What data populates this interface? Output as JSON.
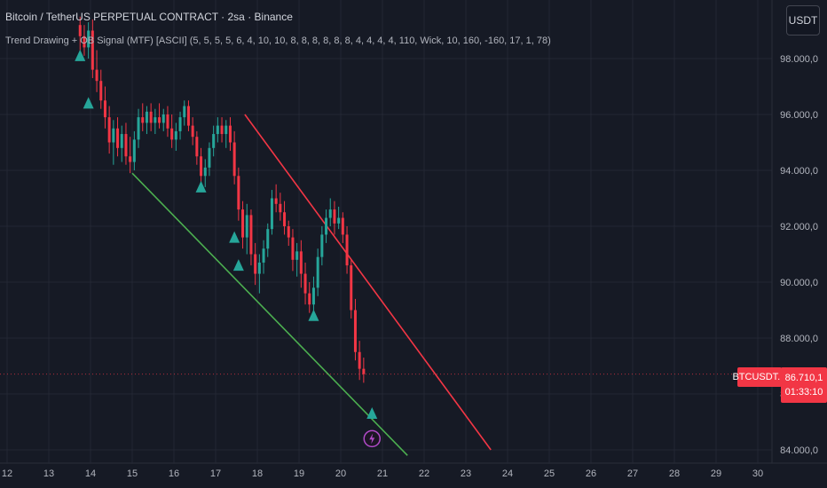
{
  "header": {
    "title": "Bitcoin / TetherUS PERPETUAL CONTRACT · 2sa · Binance",
    "indicator": "Trend Drawing + OB Signal (MTF) [ASCII] (5, 5, 5, 5, 6, 4, 10, 10, 8, 8, 8, 8, 8, 8, 4, 4, 4, 4, 110, Wick, 10, 160, -160, 17, 1, 78)"
  },
  "currency_button": "USDT",
  "last_price": {
    "symbol": "BTCUSDT.P",
    "value": "86.710,1",
    "countdown": "01:33:10"
  },
  "colors": {
    "background": "#161a25",
    "grid": "#232734",
    "up": "#26a69a",
    "down": "#f23645",
    "trend_down": "#f23645",
    "trend_up": "#4caf50",
    "signal": "#26a69a",
    "lightning": "#b04ac7"
  },
  "chart_data": {
    "type": "candlestick",
    "x_ticks": [
      {
        "label": "12",
        "day": 12
      },
      {
        "label": "13",
        "day": 13
      },
      {
        "label": "14",
        "day": 14
      },
      {
        "label": "15",
        "day": 15
      },
      {
        "label": "16",
        "day": 16
      },
      {
        "label": "17",
        "day": 17
      },
      {
        "label": "18",
        "day": 18
      },
      {
        "label": "19",
        "day": 19
      },
      {
        "label": "20",
        "day": 20
      },
      {
        "label": "21",
        "day": 21
      },
      {
        "label": "22",
        "day": 22
      },
      {
        "label": "23",
        "day": 23
      },
      {
        "label": "24",
        "day": 24
      },
      {
        "label": "25",
        "day": 25
      },
      {
        "label": "26",
        "day": 26
      },
      {
        "label": "27",
        "day": 27
      },
      {
        "label": "28",
        "day": 28
      },
      {
        "label": "29",
        "day": 29
      },
      {
        "label": "30",
        "day": 30
      }
    ],
    "y_ticks": [
      {
        "label": "84.000,0",
        "value": 84000
      },
      {
        "label": "86.000,0",
        "value": 86000
      },
      {
        "label": "88.000,0",
        "value": 88000
      },
      {
        "label": "90.000,0",
        "value": 90000
      },
      {
        "label": "92.000,0",
        "value": 92000
      },
      {
        "label": "94.000,0",
        "value": 94000
      },
      {
        "label": "96.000,0",
        "value": 96000
      },
      {
        "label": "98.000,0",
        "value": 98000
      }
    ],
    "candles": [
      {
        "day": 13.75,
        "open": 99200,
        "high": 99500,
        "low": 98300,
        "close": 98800
      },
      {
        "day": 13.85,
        "open": 98800,
        "high": 99200,
        "low": 98100,
        "close": 98400
      },
      {
        "day": 13.95,
        "open": 98400,
        "high": 99300,
        "low": 98000,
        "close": 99000
      },
      {
        "day": 14.05,
        "open": 99000,
        "high": 99400,
        "low": 97300,
        "close": 97600
      },
      {
        "day": 14.15,
        "open": 97600,
        "high": 98300,
        "low": 96800,
        "close": 97200
      },
      {
        "day": 14.25,
        "open": 97200,
        "high": 97600,
        "low": 96200,
        "close": 96500
      },
      {
        "day": 14.35,
        "open": 96500,
        "high": 97000,
        "low": 95500,
        "close": 95900
      },
      {
        "day": 14.45,
        "open": 95900,
        "high": 96300,
        "low": 94600,
        "close": 95000
      },
      {
        "day": 14.55,
        "open": 95000,
        "high": 95800,
        "low": 94200,
        "close": 95500
      },
      {
        "day": 14.65,
        "open": 95500,
        "high": 95900,
        "low": 94500,
        "close": 94800
      },
      {
        "day": 14.75,
        "open": 94800,
        "high": 95600,
        "low": 94300,
        "close": 95300
      },
      {
        "day": 14.85,
        "open": 95300,
        "high": 95700,
        "low": 94200,
        "close": 94500
      },
      {
        "day": 14.95,
        "open": 94500,
        "high": 95200,
        "low": 93900,
        "close": 94300
      },
      {
        "day": 15.05,
        "open": 94300,
        "high": 95400,
        "low": 94000,
        "close": 95100
      },
      {
        "day": 15.15,
        "open": 95100,
        "high": 96200,
        "low": 94800,
        "close": 95900
      },
      {
        "day": 15.25,
        "open": 95900,
        "high": 96400,
        "low": 95400,
        "close": 95700
      },
      {
        "day": 15.35,
        "open": 95700,
        "high": 96300,
        "low": 95300,
        "close": 96100
      },
      {
        "day": 15.45,
        "open": 96100,
        "high": 96400,
        "low": 95400,
        "close": 95700
      },
      {
        "day": 15.55,
        "open": 95700,
        "high": 96200,
        "low": 95300,
        "close": 95900
      },
      {
        "day": 15.65,
        "open": 95900,
        "high": 96400,
        "low": 95500,
        "close": 95700
      },
      {
        "day": 15.75,
        "open": 95700,
        "high": 96200,
        "low": 95400,
        "close": 96000
      },
      {
        "day": 15.85,
        "open": 96000,
        "high": 96300,
        "low": 95200,
        "close": 95500
      },
      {
        "day": 15.95,
        "open": 95500,
        "high": 96000,
        "low": 94800,
        "close": 95100
      },
      {
        "day": 16.05,
        "open": 95100,
        "high": 95700,
        "low": 94700,
        "close": 95400
      },
      {
        "day": 16.15,
        "open": 95400,
        "high": 96100,
        "low": 95100,
        "close": 95900
      },
      {
        "day": 16.25,
        "open": 95900,
        "high": 96500,
        "low": 95600,
        "close": 96300
      },
      {
        "day": 16.35,
        "open": 96300,
        "high": 96500,
        "low": 95400,
        "close": 95600
      },
      {
        "day": 16.45,
        "open": 95600,
        "high": 95900,
        "low": 94900,
        "close": 95200
      },
      {
        "day": 16.55,
        "open": 95200,
        "high": 95400,
        "low": 94200,
        "close": 94500
      },
      {
        "day": 16.65,
        "open": 94500,
        "high": 94800,
        "low": 93500,
        "close": 93800
      },
      {
        "day": 16.75,
        "open": 93800,
        "high": 94400,
        "low": 93400,
        "close": 94100
      },
      {
        "day": 16.85,
        "open": 94100,
        "high": 95000,
        "low": 93800,
        "close": 94800
      },
      {
        "day": 16.95,
        "open": 94800,
        "high": 95600,
        "low": 94500,
        "close": 95300
      },
      {
        "day": 17.05,
        "open": 95300,
        "high": 95900,
        "low": 95000,
        "close": 95600
      },
      {
        "day": 17.15,
        "open": 95600,
        "high": 95900,
        "low": 95000,
        "close": 95300
      },
      {
        "day": 17.25,
        "open": 95300,
        "high": 95800,
        "low": 94800,
        "close": 95600
      },
      {
        "day": 17.35,
        "open": 95600,
        "high": 95900,
        "low": 94700,
        "close": 95000
      },
      {
        "day": 17.45,
        "open": 95000,
        "high": 95400,
        "low": 93500,
        "close": 93800
      },
      {
        "day": 17.55,
        "open": 93800,
        "high": 94100,
        "low": 92200,
        "close": 92600
      },
      {
        "day": 17.65,
        "open": 92600,
        "high": 92900,
        "low": 91200,
        "close": 91600
      },
      {
        "day": 17.75,
        "open": 91600,
        "high": 92800,
        "low": 91000,
        "close": 92400
      },
      {
        "day": 17.85,
        "open": 92400,
        "high": 92600,
        "low": 90600,
        "close": 91000
      },
      {
        "day": 17.95,
        "open": 91000,
        "high": 91400,
        "low": 89900,
        "close": 90300
      },
      {
        "day": 18.05,
        "open": 90300,
        "high": 91000,
        "low": 89600,
        "close": 90700
      },
      {
        "day": 18.15,
        "open": 90700,
        "high": 91500,
        "low": 90300,
        "close": 91200
      },
      {
        "day": 18.25,
        "open": 91200,
        "high": 92100,
        "low": 90900,
        "close": 91900
      },
      {
        "day": 18.35,
        "open": 91900,
        "high": 93300,
        "low": 91700,
        "close": 93000
      },
      {
        "day": 18.45,
        "open": 93000,
        "high": 93500,
        "low": 92500,
        "close": 92800
      },
      {
        "day": 18.55,
        "open": 92800,
        "high": 93200,
        "low": 92200,
        "close": 92500
      },
      {
        "day": 18.65,
        "open": 92500,
        "high": 92900,
        "low": 91700,
        "close": 92000
      },
      {
        "day": 18.75,
        "open": 92000,
        "high": 92200,
        "low": 91300,
        "close": 91600
      },
      {
        "day": 18.85,
        "open": 91600,
        "high": 91900,
        "low": 90400,
        "close": 90800
      },
      {
        "day": 18.95,
        "open": 90800,
        "high": 91400,
        "low": 90200,
        "close": 91100
      },
      {
        "day": 19.05,
        "open": 91100,
        "high": 91500,
        "low": 89800,
        "close": 90300
      },
      {
        "day": 19.15,
        "open": 90300,
        "high": 90700,
        "low": 89200,
        "close": 89600
      },
      {
        "day": 19.25,
        "open": 89600,
        "high": 90000,
        "low": 88900,
        "close": 89200
      },
      {
        "day": 19.35,
        "open": 89200,
        "high": 90200,
        "low": 88800,
        "close": 89800
      },
      {
        "day": 19.45,
        "open": 89800,
        "high": 91200,
        "low": 89500,
        "close": 90900
      },
      {
        "day": 19.55,
        "open": 90900,
        "high": 92000,
        "low": 90600,
        "close": 91700
      },
      {
        "day": 19.65,
        "open": 91700,
        "high": 92600,
        "low": 91400,
        "close": 92300
      },
      {
        "day": 19.75,
        "open": 92300,
        "high": 93000,
        "low": 92000,
        "close": 92600
      },
      {
        "day": 19.85,
        "open": 92600,
        "high": 92900,
        "low": 91700,
        "close": 92100
      },
      {
        "day": 19.95,
        "open": 92100,
        "high": 92700,
        "low": 91900,
        "close": 92300
      },
      {
        "day": 20.05,
        "open": 92300,
        "high": 92500,
        "low": 91400,
        "close": 91700
      },
      {
        "day": 20.15,
        "open": 91700,
        "high": 92000,
        "low": 90300,
        "close": 90600
      },
      {
        "day": 20.25,
        "open": 90600,
        "high": 90800,
        "low": 88700,
        "close": 89000
      },
      {
        "day": 20.35,
        "open": 89000,
        "high": 89400,
        "low": 87200,
        "close": 87500
      },
      {
        "day": 20.45,
        "open": 87500,
        "high": 87900,
        "low": 86500,
        "close": 86900
      },
      {
        "day": 20.55,
        "open": 86900,
        "high": 87300,
        "low": 86400,
        "close": 86710
      }
    ],
    "trend_lines": [
      {
        "name": "downtrend",
        "from": {
          "day": 17.7,
          "value": 96000
        },
        "to": {
          "day": 23.6,
          "value": 84000
        }
      },
      {
        "name": "uptrend",
        "from": {
          "day": 15.0,
          "value": 93900
        },
        "to": {
          "day": 21.6,
          "value": 83800
        }
      }
    ],
    "signals": [
      {
        "day": 13.75,
        "value": 98100
      },
      {
        "day": 13.95,
        "value": 96400
      },
      {
        "day": 16.65,
        "value": 93400
      },
      {
        "day": 17.45,
        "value": 91600
      },
      {
        "day": 17.55,
        "value": 90600
      },
      {
        "day": 19.35,
        "value": 88800
      },
      {
        "day": 20.75,
        "value": 85300
      }
    ],
    "lightning": {
      "day": 20.75,
      "value": 84400
    },
    "last_price": 86710
  }
}
